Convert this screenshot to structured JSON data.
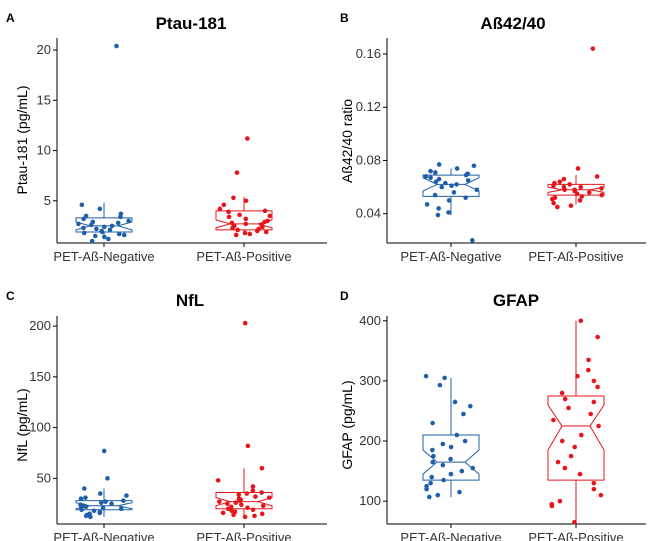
{
  "chart_data": [
    {
      "type": "box",
      "panel_letter": "A",
      "title": "Ptau-181",
      "xlabel": "",
      "ylabel": "Ptau-181 (pg/mL)",
      "ylim": [
        0.8,
        21.2
      ],
      "yticks": [
        5,
        10,
        15,
        20
      ],
      "ytick_labels": [
        "5",
        "10",
        "15",
        "20"
      ],
      "categories": [
        "PET-Aß-Negative",
        "PET-Aß-Positive"
      ],
      "colors": [
        "#1f5fa8",
        "#e8141b"
      ],
      "boxes": [
        {
          "min": 1.4,
          "q1": 1.9,
          "median": 2.5,
          "q3": 3.3,
          "max": 4.8,
          "notch_lo": 2.1,
          "notch_hi": 2.9
        },
        {
          "min": 1.6,
          "q1": 2.1,
          "median": 2.7,
          "q3": 4.0,
          "max": 5.4,
          "notch_lo": 2.3,
          "notch_hi": 3.1
        }
      ],
      "points": [
        [
          20.4,
          4.6,
          4.2,
          3.7,
          3.5,
          3.4,
          3.2,
          3.0,
          2.9,
          2.8,
          2.7,
          2.6,
          2.5,
          2.4,
          2.3,
          2.2,
          2.1,
          2.0,
          1.9,
          1.8,
          1.7,
          1.6,
          1.5,
          1.4,
          1.2,
          1.0
        ],
        [
          11.2,
          7.8,
          5.3,
          5.0,
          4.6,
          4.2,
          4.0,
          3.9,
          3.6,
          3.5,
          3.4,
          3.2,
          3.0,
          2.9,
          2.8,
          2.7,
          2.6,
          2.5,
          2.4,
          2.3,
          2.2,
          2.1,
          2.0,
          1.9,
          1.8,
          1.7,
          1.6
        ]
      ]
    },
    {
      "type": "box",
      "panel_letter": "B",
      "title": "Aß42/40",
      "xlabel": "",
      "ylabel": "Aß42/40 ratio",
      "ylim": [
        0.018,
        0.172
      ],
      "yticks": [
        0.04,
        0.08,
        0.12,
        0.16
      ],
      "ytick_labels": [
        "0.04",
        "0.08",
        "0.12",
        "0.16"
      ],
      "categories": [
        "PET-Aß-Negative",
        "PET-Aß-Positive"
      ],
      "colors": [
        "#1f5fa8",
        "#e8141b"
      ],
      "boxes": [
        {
          "min": 0.039,
          "q1": 0.053,
          "median": 0.062,
          "q3": 0.069,
          "max": 0.074,
          "notch_lo": 0.057,
          "notch_hi": 0.067
        },
        {
          "min": 0.047,
          "q1": 0.054,
          "median": 0.058,
          "q3": 0.062,
          "max": 0.069,
          "notch_lo": 0.056,
          "notch_hi": 0.06
        }
      ],
      "points": [
        [
          0.077,
          0.076,
          0.074,
          0.072,
          0.071,
          0.07,
          0.069,
          0.068,
          0.067,
          0.066,
          0.065,
          0.064,
          0.063,
          0.062,
          0.061,
          0.06,
          0.058,
          0.056,
          0.054,
          0.052,
          0.05,
          0.047,
          0.044,
          0.041,
          0.039,
          0.02
        ],
        [
          0.164,
          0.074,
          0.068,
          0.066,
          0.064,
          0.063,
          0.062,
          0.061,
          0.06,
          0.06,
          0.059,
          0.058,
          0.058,
          0.057,
          0.056,
          0.055,
          0.054,
          0.053,
          0.052,
          0.051,
          0.05,
          0.048,
          0.046,
          0.045
        ]
      ]
    },
    {
      "type": "box",
      "panel_letter": "C",
      "title": "NfL",
      "xlabel": "",
      "ylabel": "NfL (pg/mL)",
      "ylim": [
        5,
        210
      ],
      "yticks": [
        50,
        100,
        150,
        200
      ],
      "ytick_labels": [
        "50",
        "100",
        "150",
        "200"
      ],
      "categories": [
        "PET-Aß-Negative",
        "PET-Aß-Positive"
      ],
      "colors": [
        "#1f5fa8",
        "#e8141b"
      ],
      "boxes": [
        {
          "min": 12,
          "q1": 19,
          "median": 23,
          "q3": 28,
          "max": 40,
          "notch_lo": 20,
          "notch_hi": 26
        },
        {
          "min": 12,
          "q1": 20,
          "median": 27,
          "q3": 36,
          "max": 60,
          "notch_lo": 23,
          "notch_hi": 31
        }
      ],
      "points": [
        [
          77,
          50,
          40,
          35,
          33,
          31,
          30,
          28,
          27,
          26,
          25,
          24,
          23,
          22,
          21,
          21,
          20,
          19,
          18,
          17,
          16,
          15,
          14,
          13,
          12
        ],
        [
          203,
          82,
          60,
          48,
          42,
          38,
          36,
          35,
          34,
          32,
          31,
          30,
          29,
          28,
          27,
          26,
          25,
          24,
          23,
          22,
          21,
          20,
          19,
          18,
          17,
          16,
          15,
          14,
          13,
          12
        ]
      ]
    },
    {
      "type": "box",
      "panel_letter": "D",
      "title": "GFAP",
      "xlabel": "",
      "ylabel": "GFAP (pg/mL)",
      "ylim": [
        62,
        408
      ],
      "yticks": [
        100,
        200,
        300,
        400
      ],
      "ytick_labels": [
        "100",
        "200",
        "300",
        "400"
      ],
      "categories": [
        "PET-Aß-Negative",
        "PET-Aß-Positive"
      ],
      "colors": [
        "#1f5fa8",
        "#e8141b"
      ],
      "boxes": [
        {
          "min": 107,
          "q1": 135,
          "median": 165,
          "q3": 210,
          "max": 305,
          "notch_lo": 145,
          "notch_hi": 185
        },
        {
          "min": 65,
          "q1": 135,
          "median": 225,
          "q3": 275,
          "max": 400,
          "notch_lo": 185,
          "notch_hi": 260
        }
      ],
      "points": [
        [
          308,
          305,
          293,
          265,
          258,
          245,
          230,
          210,
          200,
          195,
          190,
          185,
          175,
          170,
          165,
          160,
          155,
          150,
          145,
          140,
          135,
          130,
          125,
          120,
          115,
          110,
          107
        ],
        [
          400,
          373,
          335,
          318,
          308,
          300,
          290,
          280,
          270,
          265,
          255,
          245,
          235,
          225,
          210,
          200,
          190,
          175,
          165,
          155,
          145,
          130,
          120,
          110,
          100,
          95,
          92,
          65
        ]
      ]
    }
  ]
}
